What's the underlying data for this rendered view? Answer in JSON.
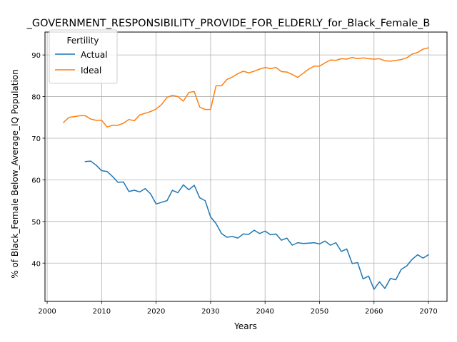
{
  "chart_data": {
    "type": "line",
    "title": "_GOVERNMENT_RESPONSIBILITY_PROVIDE_FOR_ELDERLY_for_Black_Female_B",
    "xlabel": "Years",
    "ylabel": "% of Black_Female Below_Average_IQ Population",
    "xlim": [
      1999.6,
      2073.4
    ],
    "ylim": [
      30.8,
      95.5
    ],
    "xticks": [
      2000,
      2010,
      2020,
      2030,
      2040,
      2050,
      2060,
      2070
    ],
    "yticks": [
      40,
      50,
      60,
      70,
      80,
      90
    ],
    "grid": true,
    "legend": {
      "title": "Fertility",
      "position": "top-left"
    },
    "series": [
      {
        "name": "Actual",
        "color": "#1f77b4",
        "x": [
          2007,
          2008,
          2009,
          2010,
          2011,
          2012,
          2013,
          2014,
          2015,
          2016,
          2017,
          2018,
          2019,
          2020,
          2021,
          2022,
          2023,
          2024,
          2025,
          2026,
          2027,
          2028,
          2029,
          2030,
          2031,
          2032,
          2033,
          2034,
          2035,
          2036,
          2037,
          2038,
          2039,
          2040,
          2041,
          2042,
          2043,
          2044,
          2045,
          2046,
          2047,
          2048,
          2049,
          2050,
          2051,
          2052,
          2053,
          2054,
          2055,
          2056,
          2057,
          2058,
          2059,
          2060,
          2061,
          2062,
          2063,
          2064,
          2065,
          2066,
          2067,
          2068,
          2069,
          2070
        ],
        "y": [
          64.4,
          64.5,
          63.5,
          62.2,
          62.0,
          60.8,
          59.4,
          59.5,
          57.2,
          57.5,
          57.1,
          57.9,
          56.6,
          54.2,
          54.6,
          55.0,
          57.5,
          56.9,
          58.8,
          57.6,
          58.7,
          55.7,
          55.0,
          51.1,
          49.5,
          47.1,
          46.2,
          46.4,
          46.0,
          47.0,
          46.9,
          47.9,
          47.1,
          47.7,
          46.8,
          47.0,
          45.5,
          46.0,
          44.3,
          44.9,
          44.7,
          44.8,
          44.9,
          44.6,
          45.3,
          44.3,
          44.9,
          42.8,
          43.4,
          39.9,
          40.1,
          36.2,
          36.9,
          33.7,
          35.5,
          33.9,
          36.3,
          36.0,
          38.5,
          39.3,
          40.9,
          42.0,
          41.2,
          42.0
        ]
      },
      {
        "name": "Ideal",
        "color": "#ff7f0e",
        "x": [
          2003,
          2004,
          2005,
          2006,
          2007,
          2008,
          2009,
          2010,
          2011,
          2012,
          2013,
          2014,
          2015,
          2016,
          2017,
          2018,
          2019,
          2020,
          2021,
          2022,
          2023,
          2024,
          2025,
          2026,
          2027,
          2028,
          2029,
          2030,
          2031,
          2032,
          2033,
          2034,
          2035,
          2036,
          2037,
          2038,
          2039,
          2040,
          2041,
          2042,
          2043,
          2044,
          2045,
          2046,
          2047,
          2048,
          2049,
          2050,
          2051,
          2052,
          2053,
          2054,
          2055,
          2056,
          2057,
          2058,
          2059,
          2060,
          2061,
          2062,
          2063,
          2064,
          2065,
          2066,
          2067,
          2068,
          2069,
          2070
        ],
        "y": [
          73.8,
          75.0,
          75.2,
          75.4,
          75.4,
          74.6,
          74.3,
          74.3,
          72.7,
          73.1,
          73.1,
          73.6,
          74.5,
          74.2,
          75.6,
          76.0,
          76.4,
          77.0,
          78.1,
          79.8,
          80.3,
          80.0,
          78.9,
          81.0,
          81.2,
          77.5,
          76.9,
          76.9,
          82.6,
          82.6,
          84.1,
          84.7,
          85.5,
          86.1,
          85.7,
          86.1,
          86.6,
          87.0,
          86.7,
          87.0,
          86.0,
          85.9,
          85.3,
          84.6,
          85.6,
          86.6,
          87.3,
          87.3,
          88.1,
          88.8,
          88.7,
          89.1,
          89.0,
          89.4,
          89.1,
          89.3,
          89.1,
          89.0,
          89.1,
          88.6,
          88.5,
          88.7,
          88.9,
          89.3,
          90.2,
          90.6,
          91.4,
          91.7
        ]
      }
    ]
  }
}
